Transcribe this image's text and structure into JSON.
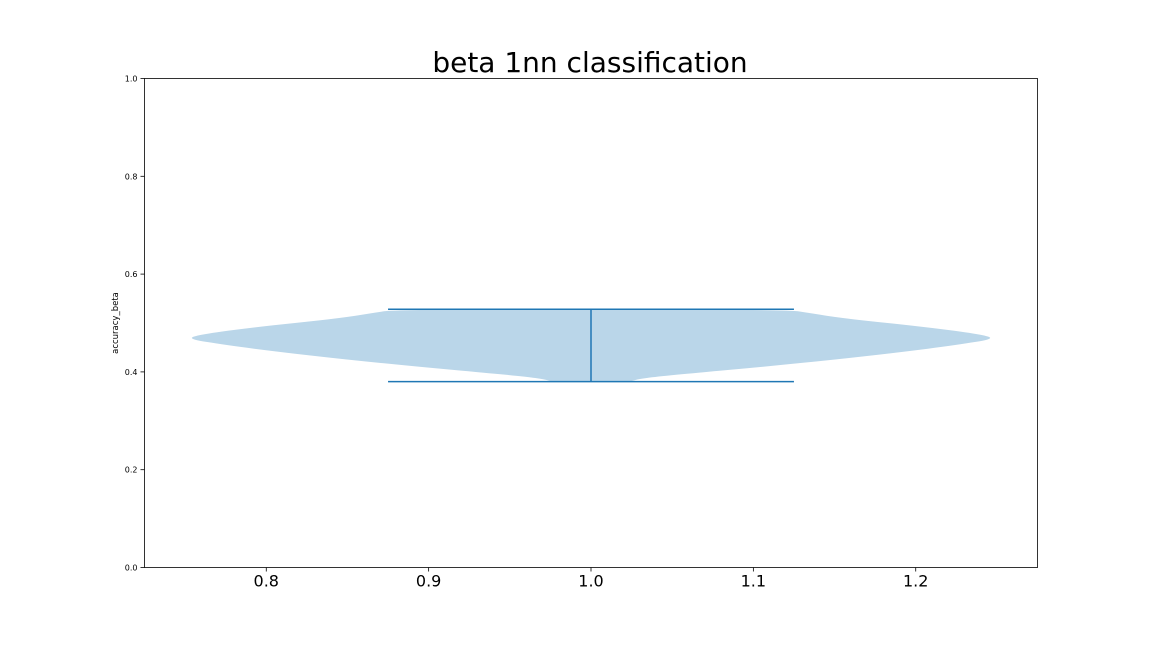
{
  "chart_data": {
    "type": "violin",
    "title": "beta 1nn classification",
    "xlabel": "",
    "ylabel": "accuracy_beta",
    "xlim": [
      0.725,
      1.275
    ],
    "ylim": [
      0.0,
      1.0
    ],
    "x_ticks": [
      0.8,
      0.9,
      1.0,
      1.1,
      1.2
    ],
    "x_tick_labels": [
      "0.8",
      "0.9",
      "1.0",
      "1.1",
      "1.2"
    ],
    "y_ticks": [
      0.0,
      0.2,
      0.4,
      0.6,
      0.8,
      1.0
    ],
    "y_tick_labels": [
      "0.0",
      "0.2",
      "0.4",
      "0.6",
      "0.8",
      "1.0"
    ],
    "grid": false,
    "series": [
      {
        "position": 1.0,
        "min": 0.38,
        "max": 0.528,
        "widths": 0.5,
        "body_color": "#bad6e9",
        "line_color": "#1f77b4",
        "density_profile": [
          [
            0.38,
            0.095
          ],
          [
            0.385,
            0.115
          ],
          [
            0.39,
            0.16
          ],
          [
            0.398,
            0.26
          ],
          [
            0.41,
            0.42
          ],
          [
            0.425,
            0.6
          ],
          [
            0.44,
            0.76
          ],
          [
            0.455,
            0.9
          ],
          [
            0.468,
            1.0
          ],
          [
            0.478,
            0.95
          ],
          [
            0.49,
            0.84
          ],
          [
            0.5,
            0.73
          ],
          [
            0.51,
            0.62
          ],
          [
            0.52,
            0.54
          ],
          [
            0.528,
            0.48
          ]
        ]
      }
    ]
  }
}
